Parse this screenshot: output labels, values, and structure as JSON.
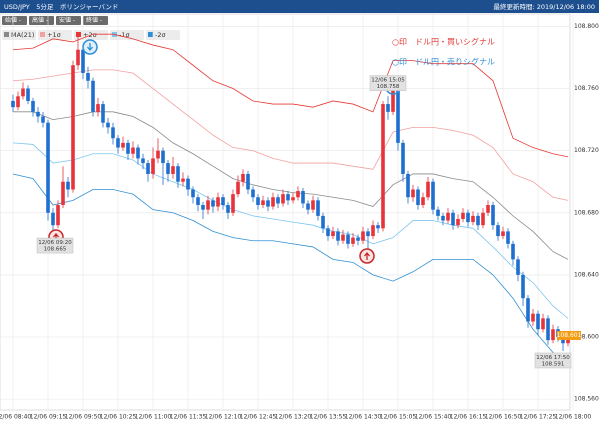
{
  "header": {
    "title": "USD/JPY　5分足　ボリンジャーバンド",
    "updated": "最終更新時間: 2019/12/06 18:00"
  },
  "controls": [
    "始値 -",
    "高値 -",
    "安値 -",
    "終値 -"
  ],
  "chart_data": {
    "type": "candlestick",
    "signals": [
      "○印　ドル円・買いシグナル",
      "○印　ドル円・売りシグナル"
    ],
    "categories": [
      "12/06 08:40",
      null,
      null,
      null,
      null,
      null,
      null,
      "12/06 09:15",
      null,
      null,
      null,
      null,
      null,
      null,
      "12/06 09:50",
      null,
      null,
      null,
      null,
      null,
      null,
      "12/06 10:25",
      null,
      null,
      null,
      null,
      null,
      null,
      "12/06 11:00",
      null,
      null,
      null,
      null,
      null,
      null,
      "12/06 11:35",
      null,
      null,
      null,
      null,
      null,
      null,
      "12/06 12:10",
      null,
      null,
      null,
      null,
      null,
      null,
      "12/06 12:45",
      null,
      null,
      null,
      null,
      null,
      null,
      "12/06 13:20",
      null,
      null,
      null,
      null,
      null,
      null,
      "12/06 13:55",
      null,
      null,
      null,
      null,
      null,
      null,
      "12/06 14:30",
      null,
      null,
      null,
      null,
      null,
      null,
      "12/06 15:05",
      null,
      null,
      null,
      null,
      null,
      null,
      "12/06 15:40",
      null,
      null,
      null,
      null,
      null,
      null,
      "12/06 16:15",
      null,
      null,
      null,
      null,
      null,
      null,
      "12/06 16:50",
      null,
      null,
      null,
      null,
      null,
      null,
      "12/06 17:25",
      null,
      null,
      null,
      null,
      null,
      null,
      "12/06 18:00"
    ],
    "candles": {
      "open": [
        108.752,
        108.748,
        108.755,
        108.76,
        108.752,
        108.745,
        108.742,
        108.738,
        108.68,
        108.672,
        108.685,
        108.7,
        108.695,
        108.775,
        108.785,
        108.77,
        108.765,
        108.745,
        108.75,
        108.738,
        108.735,
        108.728,
        108.722,
        108.725,
        108.718,
        108.722,
        108.715,
        108.712,
        108.705,
        108.715,
        108.72,
        108.712,
        108.705,
        108.71,
        108.7,
        108.702,
        108.695,
        108.69,
        108.685,
        108.682,
        108.688,
        108.684,
        108.69,
        108.685,
        108.68,
        108.692,
        108.7,
        108.705,
        108.695,
        108.69,
        108.685,
        108.688,
        108.684,
        108.69,
        108.686,
        108.692,
        108.688,
        108.69,
        108.694,
        108.686,
        108.682,
        108.688,
        108.678,
        108.67,
        108.665,
        108.668,
        108.662,
        108.666,
        108.66,
        108.664,
        108.662,
        108.668,
        108.665,
        108.672,
        108.67,
        108.75,
        108.745,
        108.76,
        108.725,
        108.705,
        108.69,
        108.695,
        108.685,
        108.69,
        108.7,
        108.682,
        108.678,
        108.675,
        108.68,
        108.672,
        108.676,
        108.68,
        108.674,
        108.678,
        108.672,
        108.68,
        108.685,
        108.672,
        108.665,
        108.668,
        108.66,
        108.65,
        108.64,
        108.625,
        108.61,
        108.615,
        108.605,
        108.612,
        108.598,
        108.605,
        108.6,
        108.596,
        null
      ],
      "high": [
        108.756,
        108.758,
        108.764,
        108.762,
        108.754,
        108.748,
        108.745,
        108.74,
        108.683,
        108.688,
        108.71,
        108.703,
        108.778,
        108.795,
        108.788,
        108.774,
        108.767,
        108.754,
        108.752,
        108.741,
        108.738,
        108.73,
        108.729,
        108.727,
        108.726,
        108.724,
        108.718,
        108.714,
        108.722,
        108.728,
        108.722,
        108.714,
        108.716,
        108.712,
        108.706,
        108.704,
        108.697,
        108.692,
        108.687,
        108.691,
        108.69,
        108.693,
        108.692,
        108.687,
        108.695,
        108.704,
        108.708,
        108.707,
        108.697,
        108.692,
        108.691,
        108.69,
        108.693,
        108.692,
        108.695,
        108.694,
        108.693,
        108.697,
        108.696,
        108.688,
        108.691,
        108.69,
        108.68,
        108.672,
        108.671,
        108.67,
        108.669,
        108.668,
        108.667,
        108.666,
        108.671,
        108.67,
        108.675,
        108.674,
        108.752,
        108.755,
        108.766,
        108.762,
        108.727,
        108.707,
        108.698,
        108.697,
        108.693,
        108.703,
        108.702,
        108.684,
        108.68,
        108.683,
        108.682,
        108.679,
        108.683,
        108.682,
        108.681,
        108.68,
        108.683,
        108.688,
        108.687,
        108.674,
        108.671,
        108.67,
        108.662,
        108.652,
        108.642,
        108.627,
        108.618,
        108.617,
        108.615,
        108.614,
        108.608,
        108.607,
        108.602,
        108.603,
        null
      ],
      "low": [
        108.745,
        108.746,
        108.753,
        108.75,
        108.742,
        108.738,
        108.735,
        108.675,
        108.665,
        108.67,
        108.683,
        108.69,
        108.693,
        108.772,
        108.766,
        108.76,
        108.742,
        108.742,
        108.735,
        108.731,
        108.724,
        108.718,
        108.72,
        108.714,
        108.715,
        108.711,
        108.708,
        108.7,
        108.702,
        108.712,
        108.698,
        108.7,
        108.702,
        108.696,
        108.697,
        108.691,
        108.686,
        108.681,
        108.676,
        108.679,
        108.68,
        108.681,
        108.682,
        108.676,
        108.678,
        108.69,
        108.697,
        108.692,
        108.687,
        108.682,
        108.683,
        108.681,
        108.682,
        108.683,
        108.684,
        108.685,
        108.686,
        108.688,
        108.683,
        108.679,
        108.68,
        108.675,
        108.667,
        108.662,
        108.663,
        108.659,
        108.66,
        108.657,
        108.658,
        108.659,
        108.66,
        108.655,
        108.663,
        108.667,
        108.668,
        108.74,
        108.743,
        108.72,
        108.7,
        108.686,
        108.687,
        108.682,
        108.683,
        108.688,
        108.679,
        108.675,
        108.672,
        108.673,
        108.669,
        108.67,
        108.674,
        108.671,
        108.672,
        108.669,
        108.67,
        108.678,
        108.669,
        108.662,
        108.663,
        108.657,
        108.646,
        108.636,
        108.62,
        108.606,
        108.607,
        108.601,
        108.603,
        108.595,
        108.596,
        108.597,
        108.591,
        108.594,
        null
      ],
      "close": [
        108.748,
        108.755,
        108.76,
        108.752,
        108.745,
        108.742,
        108.738,
        108.68,
        108.672,
        108.685,
        108.7,
        108.695,
        108.775,
        108.785,
        108.77,
        108.765,
        108.745,
        108.75,
        108.738,
        108.735,
        108.728,
        108.722,
        108.725,
        108.718,
        108.722,
        108.715,
        108.712,
        108.705,
        108.715,
        108.72,
        108.712,
        108.705,
        108.71,
        108.7,
        108.702,
        108.695,
        108.69,
        108.685,
        108.682,
        108.688,
        108.684,
        108.69,
        108.685,
        108.68,
        108.692,
        108.7,
        108.705,
        108.695,
        108.69,
        108.685,
        108.688,
        108.684,
        108.69,
        108.686,
        108.692,
        108.688,
        108.69,
        108.694,
        108.686,
        108.682,
        108.688,
        108.678,
        108.67,
        108.665,
        108.668,
        108.662,
        108.666,
        108.66,
        108.664,
        108.662,
        108.668,
        108.665,
        108.672,
        108.67,
        108.75,
        108.745,
        108.76,
        108.725,
        108.705,
        108.69,
        108.695,
        108.685,
        108.69,
        108.7,
        108.682,
        108.678,
        108.675,
        108.68,
        108.672,
        108.676,
        108.68,
        108.674,
        108.678,
        108.672,
        108.68,
        108.685,
        108.672,
        108.665,
        108.668,
        108.66,
        108.65,
        108.64,
        108.625,
        108.61,
        108.615,
        108.605,
        108.612,
        108.598,
        108.605,
        108.6,
        108.596,
        108.601,
        null
      ],
      "up_color": "#e8333a",
      "down_color": "#1f6fd1"
    },
    "x": [
      0,
      4,
      8,
      12,
      16,
      20,
      24,
      28,
      32,
      36,
      40,
      44,
      48,
      52,
      56,
      60,
      64,
      68,
      72,
      76,
      80,
      84,
      88,
      92,
      96,
      100,
      104,
      108,
      111
    ],
    "series": [
      {
        "name": "MA(21)",
        "color": "#8a8a8a",
        "values": [
          108.745,
          108.745,
          108.74,
          108.742,
          108.745,
          108.745,
          108.742,
          108.735,
          108.725,
          108.718,
          108.71,
          108.702,
          108.698,
          108.695,
          108.693,
          108.692,
          108.69,
          108.688,
          108.684,
          108.698,
          108.705,
          108.705,
          108.702,
          108.7,
          108.69,
          108.678,
          108.668,
          108.655,
          108.65
        ]
      },
      {
        "name": "+1σ",
        "color": "#f2a0a0",
        "values": [
          108.765,
          108.766,
          108.768,
          108.77,
          108.772,
          108.772,
          108.77,
          108.76,
          108.75,
          108.74,
          108.73,
          108.722,
          108.72,
          108.715,
          108.712,
          108.712,
          108.712,
          108.71,
          108.708,
          108.732,
          108.735,
          108.735,
          108.733,
          108.73,
          108.722,
          108.705,
          108.7,
          108.69,
          108.688
        ]
      },
      {
        "name": "+2σ",
        "color": "#e53935",
        "values": [
          108.785,
          108.786,
          108.792,
          108.79,
          108.795,
          108.795,
          108.792,
          108.788,
          108.785,
          108.775,
          108.765,
          108.76,
          108.752,
          108.75,
          108.75,
          108.748,
          108.752,
          108.75,
          108.745,
          108.778,
          108.778,
          108.776,
          108.776,
          108.776,
          108.765,
          108.728,
          108.722,
          108.718,
          108.716
        ]
      },
      {
        "name": "-1σ",
        "color": "#7cc6ee",
        "values": [
          108.725,
          108.724,
          108.712,
          108.714,
          108.718,
          108.718,
          108.714,
          108.705,
          108.7,
          108.695,
          108.688,
          108.682,
          108.678,
          108.676,
          108.674,
          108.672,
          108.668,
          108.666,
          108.66,
          108.664,
          108.675,
          108.675,
          108.672,
          108.67,
          108.658,
          108.645,
          108.635,
          108.62,
          108.612
        ]
      },
      {
        "name": "-2σ",
        "color": "#2f8fd4",
        "values": [
          108.705,
          108.702,
          108.685,
          108.688,
          108.695,
          108.695,
          108.692,
          108.682,
          108.68,
          108.675,
          108.668,
          108.664,
          108.662,
          108.662,
          108.66,
          108.658,
          108.65,
          108.648,
          108.64,
          108.636,
          108.642,
          108.65,
          108.65,
          108.65,
          108.64,
          108.625,
          108.605,
          108.59,
          108.58
        ]
      }
    ],
    "annotations": [
      {
        "time": "12/06 09:20",
        "price": 108.665
      },
      {
        "time": "12/06 15:05",
        "price": 108.758
      },
      {
        "time": "12/06 17:50",
        "price": 108.591
      }
    ],
    "last_price": 108.601,
    "last_price_color": "#f39c12",
    "ylim": [
      108.553,
      108.808
    ],
    "yticks": [
      {
        "value": 108.8,
        "label": "108.800"
      },
      {
        "value": 108.76,
        "label": "108.760"
      },
      {
        "value": 108.72,
        "label": "108.720"
      },
      {
        "value": 108.68,
        "label": "108.680"
      },
      {
        "value": 108.64,
        "label": "108.640"
      },
      {
        "value": 108.6,
        "label": "108.600"
      },
      {
        "value": 108.56,
        "label": "108.560"
      }
    ],
    "grid": true
  }
}
